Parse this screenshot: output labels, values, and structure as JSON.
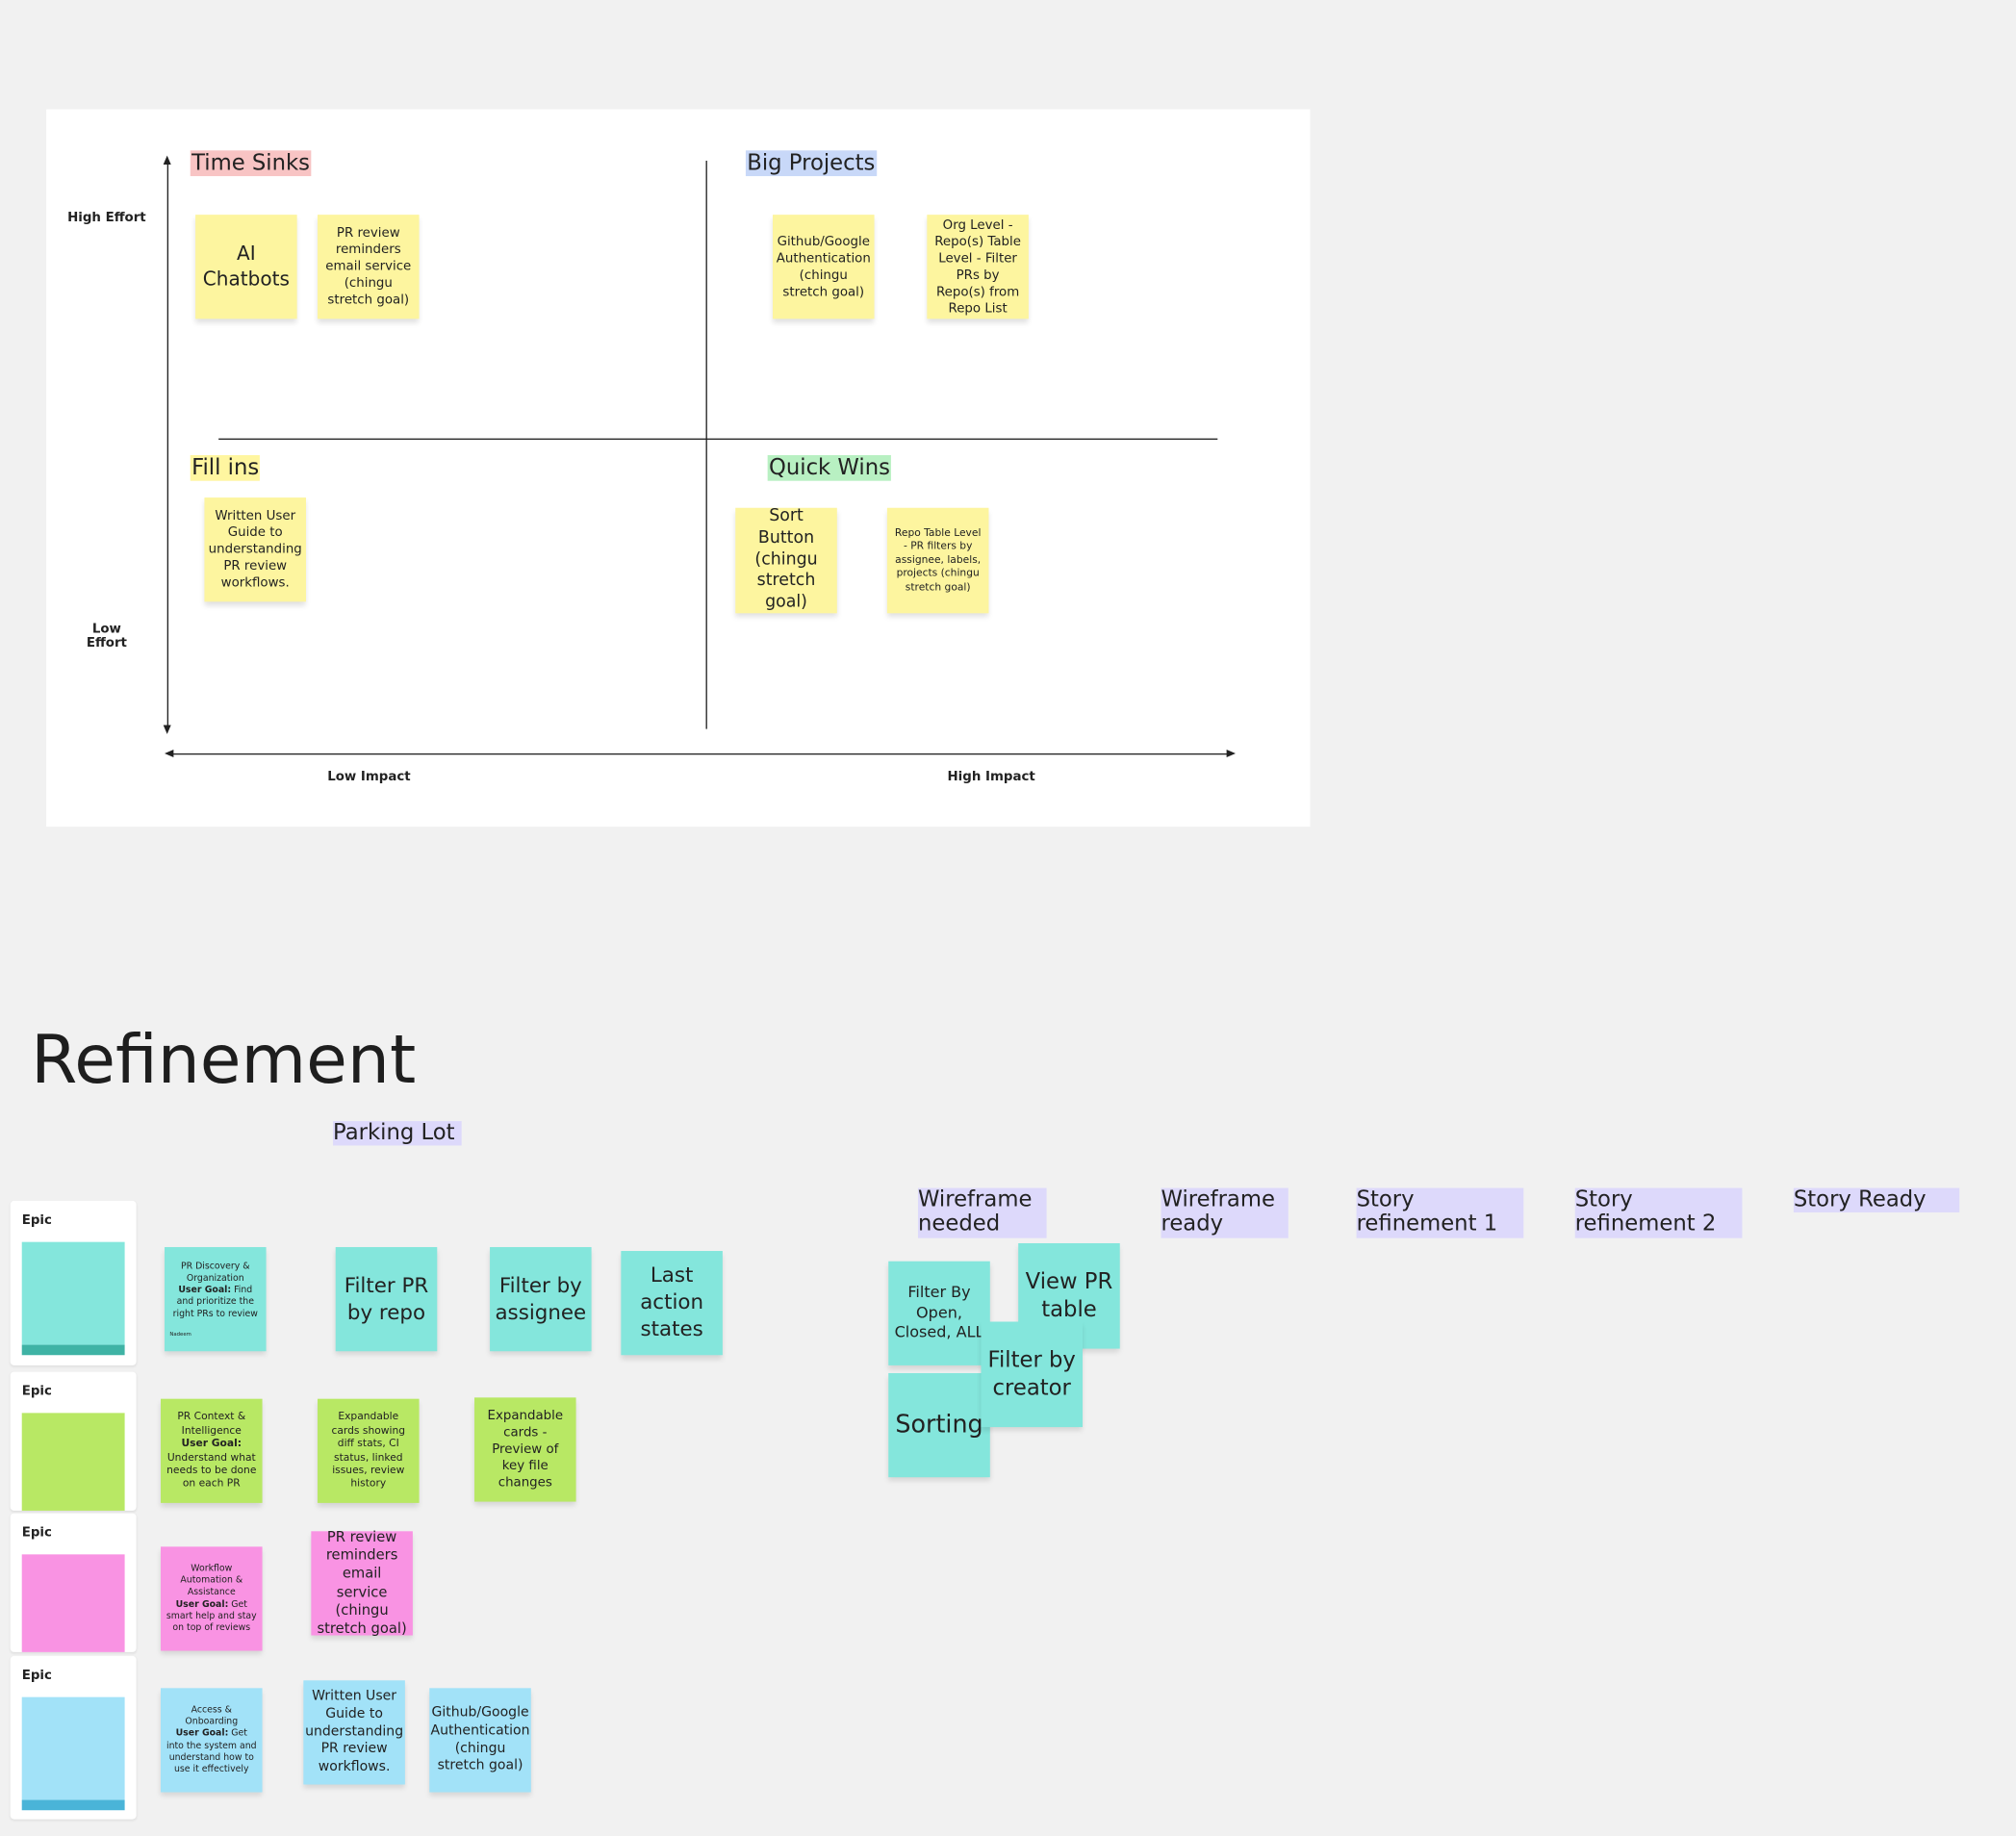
{
  "matrix": {
    "y_high": "High Effort",
    "y_low": "Low Effort",
    "x_low": "Low Impact",
    "x_high": "High Impact",
    "quadrants": [
      {
        "title": "Time Sinks",
        "color": "#f8c4c4",
        "notes": [
          "AI Chatbots",
          "PR review reminders email service (chingu stretch goal)"
        ]
      },
      {
        "title": "Big Projects",
        "color": "#c8d8f8",
        "notes": [
          "Github/Google Authentication (chingu stretch goal)",
          "Org Level - Repo(s) Table Level - Filter PRs by Repo(s) from Repo List"
        ]
      },
      {
        "title": "Fill ins",
        "color": "#fff6a0",
        "notes": [
          "Written User Guide to understanding PR review workflows."
        ]
      },
      {
        "title": "Quick Wins",
        "color": "#b8f0c2",
        "notes": [
          "Sort Button (chingu stretch goal)",
          "Repo Table Level - PR filters by assignee, labels, projects (chingu stretch goal)"
        ]
      }
    ]
  },
  "refinement": {
    "title": "Refinement",
    "parking_lot": "Parking Lot",
    "epic_label": "Epic",
    "epics": [
      {
        "color": "#84e6dc",
        "goal_title": "PR Discovery & Organization",
        "goal_label": "User Goal:",
        "goal_text": "Find and prioritize the right PRs to review",
        "author": "Nadeem",
        "items": [
          "Filter PR by repo",
          "Filter by assignee",
          "Last action states"
        ]
      },
      {
        "color": "#b8e864",
        "goal_title": "PR Context & Intelligence",
        "goal_label": "User Goal:",
        "goal_text": "Understand what needs to be done on each PR",
        "items": [
          "Expandable cards showing diff stats, CI status, linked issues, review history",
          "Expandable cards - Preview of key file changes"
        ]
      },
      {
        "color": "#f993e3",
        "goal_title": "Workflow Automation & Assistance",
        "goal_label": "User Goal:",
        "goal_text": "Get smart help and stay on top of reviews",
        "items": [
          "PR review reminders email service (chingu stretch goal)"
        ]
      },
      {
        "color": "#a2e2f8",
        "goal_title": "Access & Onboarding",
        "goal_label": "User Goal:",
        "goal_text": "Get into the system and understand how to use it effectively",
        "items": [
          "Written User Guide to understanding PR review workflows.",
          "Github/Google Authentication (chingu stretch goal)"
        ]
      }
    ],
    "columns": [
      "Wireframe needed",
      "Wireframe ready",
      "Story refinement 1",
      "Story refinement 2",
      "Story Ready"
    ],
    "wireframe_needed": [
      "Filter By Open, Closed, ALL",
      "View PR table",
      "Sorting",
      "Filter by creator"
    ]
  }
}
